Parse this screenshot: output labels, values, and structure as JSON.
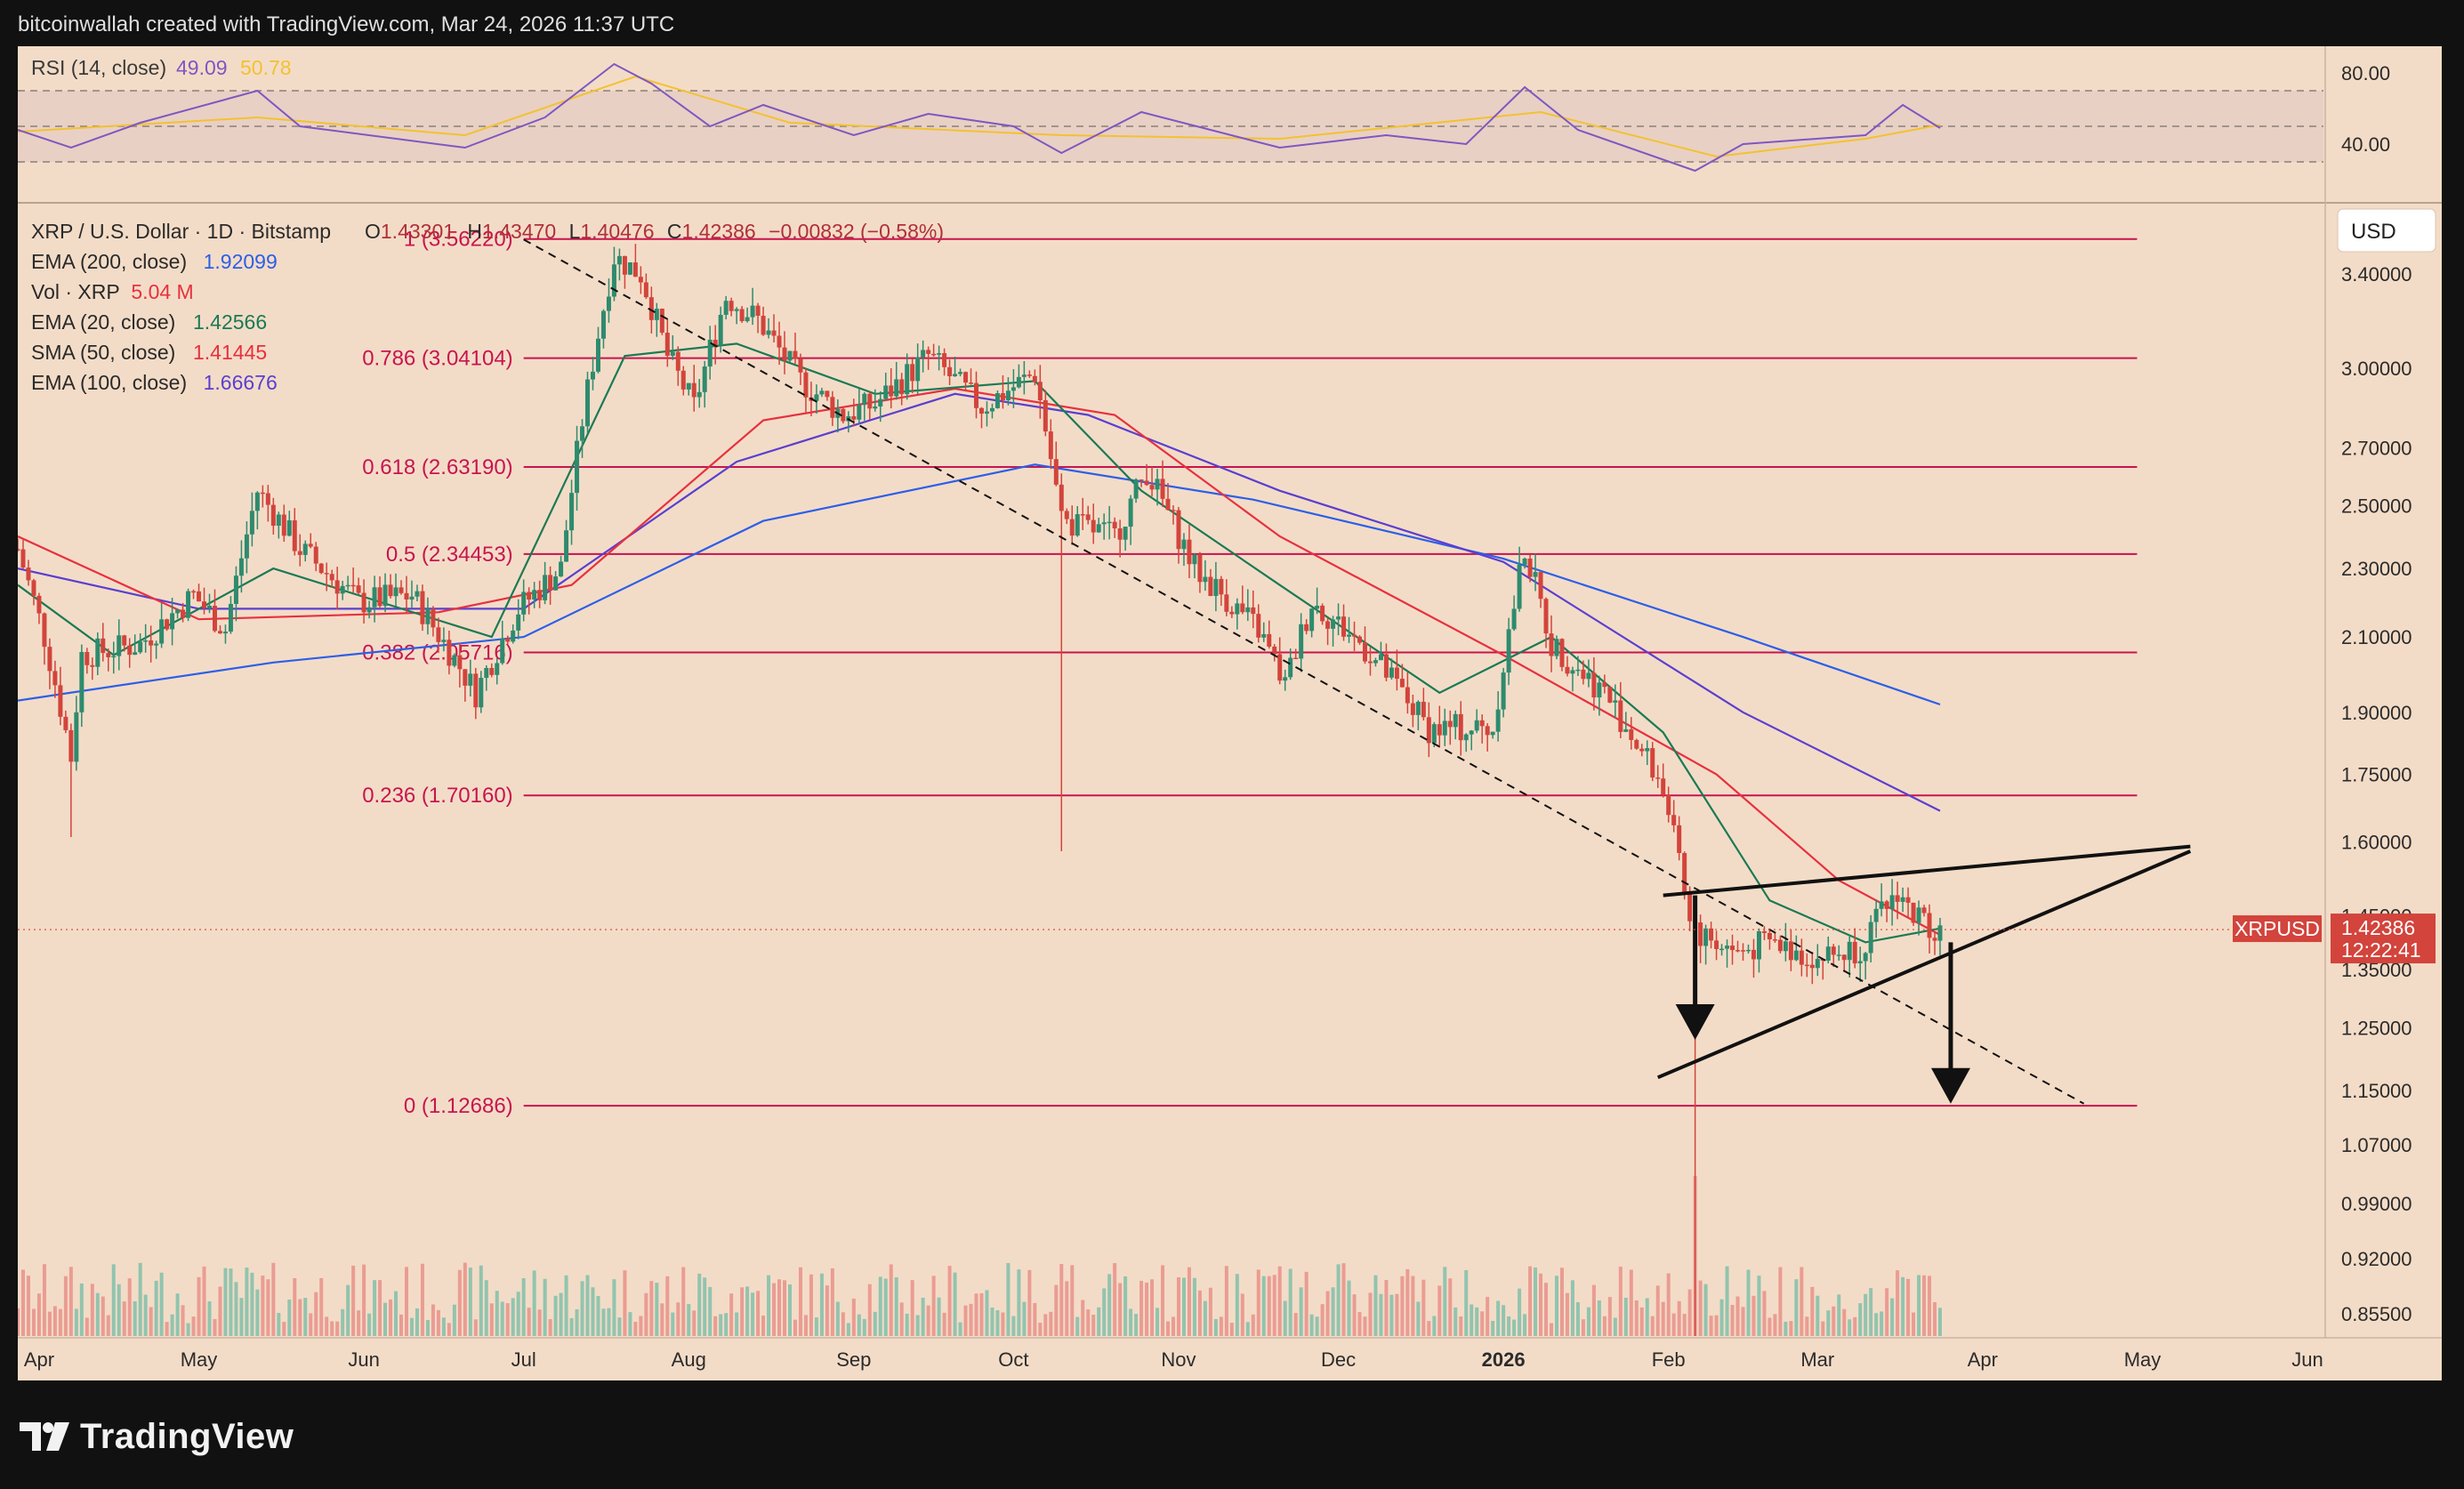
{
  "header": {
    "caption": "bitcoinwallah created with TradingView.com, Mar 24, 2026 11:37 UTC"
  },
  "footer": {
    "brand": "TradingView"
  },
  "colors": {
    "background": "#f3dcc7",
    "frame": "#111111",
    "up": "#2e8b6e",
    "down": "#d2443c",
    "ema200": "#2c5fe8",
    "ema100": "#5a3fd0",
    "sma50": "#e8303f",
    "ema20": "#1a7a55",
    "rsi": "#7e57c2",
    "rsi_ma": "#f2c230",
    "fib": "#c8144f",
    "price_tag": "#d2443c"
  },
  "rsi_panel": {
    "label": "RSI (14, close)",
    "value": "49.09",
    "ma_value": "50.78",
    "levels": [
      "80.00",
      "40.00"
    ]
  },
  "legend": {
    "symbol": "XRP / U.S. Dollar · 1D · Bitstamp",
    "ohlc": {
      "o_label": "O",
      "o": "1.43301",
      "h_label": "H",
      "h": "1.43470",
      "l_label": "L",
      "l": "1.40476",
      "c_label": "C",
      "c": "1.42386",
      "change": "−0.00832 (−0.58%)"
    },
    "indicators": [
      {
        "label": "EMA (200, close)",
        "value": "1.92099",
        "color": "#2c5fe8"
      },
      {
        "label": "Vol · XRP",
        "value": "5.04 M",
        "color": "#e8303f"
      },
      {
        "label": "EMA (20, close)",
        "value": "1.42566",
        "color": "#1a7a55"
      },
      {
        "label": "SMA (50, close)",
        "value": "1.41445",
        "color": "#e8303f"
      },
      {
        "label": "EMA (100, close)",
        "value": "1.66676",
        "color": "#5a3fd0"
      }
    ]
  },
  "currency_button": "USD",
  "price_tag": {
    "symbol": "XRPUSD",
    "price": "1.42386",
    "countdown": "12:22:41"
  },
  "chart_data": {
    "type": "candlestick",
    "title": "XRP / U.S. Dollar · 1D · Bitstamp",
    "y_scale": "log",
    "ylim": [
      0.83,
      3.72
    ],
    "y_ticks": [
      {
        "label": "3.40000",
        "value": 3.4
      },
      {
        "label": "3.00000",
        "value": 3.0
      },
      {
        "label": "2.70000",
        "value": 2.7
      },
      {
        "label": "2.50000",
        "value": 2.5
      },
      {
        "label": "2.30000",
        "value": 2.3
      },
      {
        "label": "2.10000",
        "value": 2.1
      },
      {
        "label": "1.90000",
        "value": 1.9
      },
      {
        "label": "1.75000",
        "value": 1.75
      },
      {
        "label": "1.60000",
        "value": 1.6
      },
      {
        "label": "1.45000",
        "value": 1.45
      },
      {
        "label": "1.35000",
        "value": 1.35
      },
      {
        "label": "1.25000",
        "value": 1.25
      },
      {
        "label": "1.15000",
        "value": 1.15
      },
      {
        "label": "1.07000",
        "value": 1.07
      },
      {
        "label": "0.99000",
        "value": 0.99
      },
      {
        "label": "0.92000",
        "value": 0.92
      },
      {
        "label": "0.85500",
        "value": 0.855
      }
    ],
    "x_start": "2025-03-28",
    "x_end": "2026-06-04",
    "x_ticks": [
      {
        "label": "Apr",
        "date": "2025-04-01"
      },
      {
        "label": "May",
        "date": "2025-05-01"
      },
      {
        "label": "Jun",
        "date": "2025-06-01"
      },
      {
        "label": "Jul",
        "date": "2025-07-01"
      },
      {
        "label": "Aug",
        "date": "2025-08-01"
      },
      {
        "label": "Sep",
        "date": "2025-09-01"
      },
      {
        "label": "Oct",
        "date": "2025-10-01"
      },
      {
        "label": "Nov",
        "date": "2025-11-01"
      },
      {
        "label": "Dec",
        "date": "2025-12-01"
      },
      {
        "label": "2026",
        "date": "2026-01-01",
        "bold": true
      },
      {
        "label": "Feb",
        "date": "2026-02-01"
      },
      {
        "label": "Mar",
        "date": "2026-03-01"
      },
      {
        "label": "Apr",
        "date": "2026-04-01"
      },
      {
        "label": "May",
        "date": "2026-05-01"
      },
      {
        "label": "Jun",
        "date": "2026-06-01"
      }
    ],
    "last_price": 1.42386,
    "close_path": [
      [
        "2025-03-28",
        2.36
      ],
      [
        "2025-04-02",
        2.1
      ],
      [
        "2025-04-07",
        1.79
      ],
      [
        "2025-04-09",
        2.05
      ],
      [
        "2025-04-20",
        2.08
      ],
      [
        "2025-04-30",
        2.22
      ],
      [
        "2025-05-06",
        2.12
      ],
      [
        "2025-05-12",
        2.55
      ],
      [
        "2025-05-20",
        2.36
      ],
      [
        "2025-05-31",
        2.2
      ],
      [
        "2025-06-10",
        2.22
      ],
      [
        "2025-06-22",
        1.95
      ],
      [
        "2025-06-30",
        2.18
      ],
      [
        "2025-07-08",
        2.3
      ],
      [
        "2025-07-12",
        2.8
      ],
      [
        "2025-07-18",
        3.48
      ],
      [
        "2025-07-23",
        3.4
      ],
      [
        "2025-07-28",
        3.05
      ],
      [
        "2025-08-02",
        2.85
      ],
      [
        "2025-08-08",
        3.3
      ],
      [
        "2025-08-14",
        3.2
      ],
      [
        "2025-08-22",
        2.95
      ],
      [
        "2025-08-30",
        2.82
      ],
      [
        "2025-09-05",
        2.86
      ],
      [
        "2025-09-15",
        3.05
      ],
      [
        "2025-09-25",
        2.85
      ],
      [
        "2025-10-05",
        2.98
      ],
      [
        "2025-10-10",
        2.45
      ],
      [
        "2025-10-20",
        2.4
      ],
      [
        "2025-10-26",
        2.62
      ],
      [
        "2025-11-04",
        2.3
      ],
      [
        "2025-11-16",
        2.12
      ],
      [
        "2025-11-21",
        1.97
      ],
      [
        "2025-11-26",
        2.2
      ],
      [
        "2025-12-06",
        2.07
      ],
      [
        "2025-12-18",
        1.86
      ],
      [
        "2025-12-30",
        1.86
      ],
      [
        "2026-01-05",
        2.36
      ],
      [
        "2026-01-10",
        2.08
      ],
      [
        "2026-01-20",
        1.95
      ],
      [
        "2026-01-31",
        1.72
      ],
      [
        "2026-02-05",
        1.43
      ],
      [
        "2026-02-06",
        1.42
      ],
      [
        "2026-02-14",
        1.38
      ],
      [
        "2026-02-20",
        1.4
      ],
      [
        "2026-03-01",
        1.37
      ],
      [
        "2026-03-09",
        1.39
      ],
      [
        "2026-03-16",
        1.5
      ],
      [
        "2026-03-19",
        1.45
      ],
      [
        "2026-03-24",
        1.42386
      ]
    ],
    "notable_wicks": [
      {
        "date": "2025-04-07",
        "low": 1.61
      },
      {
        "date": "2025-10-10",
        "low": 1.58
      },
      {
        "date": "2026-02-06",
        "low": 0.83
      }
    ],
    "fibonacci": [
      {
        "label": "1 (3.56220)",
        "value": 3.5622
      },
      {
        "label": "0.786 (3.04104)",
        "value": 3.04104
      },
      {
        "label": "0.618 (2.63190)",
        "value": 2.6319
      },
      {
        "label": "0.5 (2.34453)",
        "value": 2.34453
      },
      {
        "label": "0.382 (2.05716)",
        "value": 2.05716
      },
      {
        "label": "0.236 (1.70160)",
        "value": 1.7016
      },
      {
        "label": "0 (1.12686)",
        "value": 1.12686
      }
    ],
    "fib_start": "2025-07-01",
    "fib_end": "2026-04-30",
    "moving_averages": [
      {
        "name": "EMA (200, close)",
        "color": "#2c5fe8",
        "points": [
          [
            "2025-03-28",
            1.93
          ],
          [
            "2025-05-15",
            2.03
          ],
          [
            "2025-07-01",
            2.1
          ],
          [
            "2025-08-15",
            2.45
          ],
          [
            "2025-10-05",
            2.64
          ],
          [
            "2025-11-15",
            2.52
          ],
          [
            "2026-01-01",
            2.33
          ],
          [
            "2026-02-15",
            2.1
          ],
          [
            "2026-03-24",
            1.92
          ]
        ]
      },
      {
        "name": "EMA (100, close)",
        "color": "#5a3fd0",
        "points": [
          [
            "2025-03-28",
            2.3
          ],
          [
            "2025-05-01",
            2.18
          ],
          [
            "2025-07-01",
            2.18
          ],
          [
            "2025-08-10",
            2.65
          ],
          [
            "2025-09-20",
            2.9
          ],
          [
            "2025-10-15",
            2.82
          ],
          [
            "2025-11-20",
            2.55
          ],
          [
            "2026-01-01",
            2.32
          ],
          [
            "2026-02-15",
            1.9
          ],
          [
            "2026-03-24",
            1.667
          ]
        ]
      },
      {
        "name": "SMA (50, close)",
        "color": "#e8303f",
        "points": [
          [
            "2025-03-28",
            2.4
          ],
          [
            "2025-05-01",
            2.15
          ],
          [
            "2025-06-15",
            2.17
          ],
          [
            "2025-07-10",
            2.25
          ],
          [
            "2025-08-15",
            2.8
          ],
          [
            "2025-09-20",
            2.92
          ],
          [
            "2025-10-20",
            2.82
          ],
          [
            "2025-11-20",
            2.4
          ],
          [
            "2026-01-01",
            2.05
          ],
          [
            "2026-02-10",
            1.75
          ],
          [
            "2026-03-05",
            1.52
          ],
          [
            "2026-03-24",
            1.414
          ]
        ]
      },
      {
        "name": "EMA (20, close)",
        "color": "#1a7a55",
        "points": [
          [
            "2025-03-28",
            2.25
          ],
          [
            "2025-04-15",
            2.05
          ],
          [
            "2025-05-15",
            2.3
          ],
          [
            "2025-06-25",
            2.1
          ],
          [
            "2025-07-20",
            3.05
          ],
          [
            "2025-08-10",
            3.1
          ],
          [
            "2025-09-05",
            2.9
          ],
          [
            "2025-10-05",
            2.95
          ],
          [
            "2025-10-25",
            2.55
          ],
          [
            "2025-11-20",
            2.25
          ],
          [
            "2025-12-20",
            1.95
          ],
          [
            "2026-01-10",
            2.1
          ],
          [
            "2026-01-31",
            1.85
          ],
          [
            "2026-02-20",
            1.48
          ],
          [
            "2026-03-10",
            1.4
          ],
          [
            "2026-03-24",
            1.426
          ]
        ]
      }
    ],
    "trendlines": [
      {
        "name": "resistance",
        "from": [
          "2026-01-31",
          1.49
        ],
        "to": [
          "2026-05-10",
          1.59
        ]
      },
      {
        "name": "support",
        "from": [
          "2026-01-30",
          1.17
        ],
        "to": [
          "2026-05-10",
          1.58
        ]
      },
      {
        "name": "descending",
        "from": [
          "2025-07-01",
          3.56
        ],
        "to": [
          "2026-04-20",
          1.13
        ],
        "dashed": true
      }
    ],
    "arrows": [
      {
        "at": "2026-02-06",
        "from": 1.49,
        "to": 1.23
      },
      {
        "at": "2026-03-26",
        "from": 1.4,
        "to": 1.13
      }
    ],
    "rsi": {
      "ylim": [
        20,
        95
      ],
      "upper": 70,
      "middle": 50,
      "lower": 30,
      "points": [
        [
          "2025-03-28",
          48
        ],
        [
          "2025-04-07",
          38
        ],
        [
          "2025-04-20",
          52
        ],
        [
          "2025-05-12",
          70
        ],
        [
          "2025-05-20",
          50
        ],
        [
          "2025-06-20",
          38
        ],
        [
          "2025-07-05",
          55
        ],
        [
          "2025-07-18",
          85
        ],
        [
          "2025-07-25",
          74
        ],
        [
          "2025-08-05",
          50
        ],
        [
          "2025-08-15",
          62
        ],
        [
          "2025-09-01",
          45
        ],
        [
          "2025-09-15",
          57
        ],
        [
          "2025-10-01",
          50
        ],
        [
          "2025-10-10",
          35
        ],
        [
          "2025-10-25",
          58
        ],
        [
          "2025-11-20",
          38
        ],
        [
          "2025-12-10",
          45
        ],
        [
          "2025-12-25",
          40
        ],
        [
          "2026-01-05",
          72
        ],
        [
          "2026-01-15",
          48
        ],
        [
          "2026-02-06",
          25
        ],
        [
          "2026-02-15",
          40
        ],
        [
          "2026-03-10",
          45
        ],
        [
          "2026-03-17",
          62
        ],
        [
          "2026-03-24",
          49
        ]
      ],
      "ma_points": [
        [
          "2025-03-28",
          47
        ],
        [
          "2025-05-12",
          55
        ],
        [
          "2025-06-20",
          45
        ],
        [
          "2025-07-22",
          78
        ],
        [
          "2025-08-20",
          52
        ],
        [
          "2025-10-10",
          45
        ],
        [
          "2025-11-20",
          43
        ],
        [
          "2026-01-08",
          58
        ],
        [
          "2026-02-10",
          33
        ],
        [
          "2026-03-10",
          43
        ],
        [
          "2026-03-24",
          50.8
        ]
      ]
    },
    "volume": {
      "spikes": [
        {
          "date": "2026-02-06",
          "value": 1.0
        },
        {
          "date": "2025-10-10",
          "value": 0.45
        }
      ]
    }
  }
}
